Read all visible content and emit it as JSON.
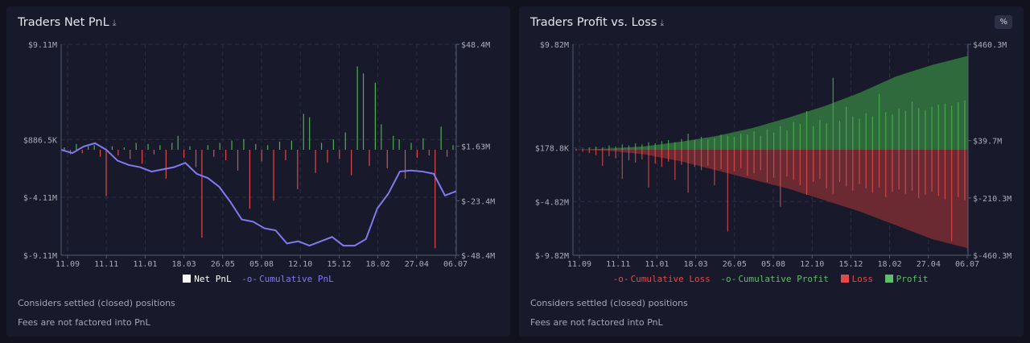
{
  "left_panel": {
    "title": "Traders Net PnL",
    "download_icon": "download-icon",
    "notes": [
      "Considers settled (closed) positions",
      "Fees are not factored into PnL"
    ]
  },
  "right_panel": {
    "title": "Traders Profit vs. Loss",
    "download_icon": "download-icon",
    "percent_button": "%",
    "notes": [
      "Considers settled (closed) positions",
      "Fees are not factored into PnL"
    ]
  },
  "colors": {
    "profit": "#4caf50",
    "loss": "#e04a4a",
    "cumulative_pnl": "#8179f0",
    "profit_area": "#2f6a3c",
    "loss_area": "#6b2a32",
    "background": "#181a2b"
  },
  "chart_data": [
    {
      "type": "bar+line",
      "x_tick_labels": [
        "11.09",
        "11.11",
        "11.01",
        "18.03",
        "26.05",
        "05.08",
        "12.10",
        "15.12",
        "18.02",
        "27.04",
        "06.07"
      ],
      "y_left_ticks": [
        "$9.11M",
        "$886.5K",
        "$-4.11M",
        "$-9.11M"
      ],
      "y_left_tick_values": [
        9.11,
        0.8865,
        -4.11,
        -9.11
      ],
      "y_left_range": [
        -9.11,
        9.11
      ],
      "y_right_ticks": [
        "$48.4M",
        "$1.63M",
        "$-23.4M",
        "$-48.4M"
      ],
      "y_right_tick_values": [
        48.4,
        1.63,
        -23.4,
        -48.4
      ],
      "y_right_range": [
        -48.4,
        48.4
      ],
      "grid": true,
      "legend_placement": "bottom",
      "legend": [
        "Net PnL",
        "Cumulative PnL"
      ],
      "series": [
        {
          "name": "Net PnL",
          "axis": "left",
          "unit": "M",
          "values": [
            0.2,
            -0.4,
            0.5,
            -0.3,
            0.3,
            0.4,
            -0.6,
            -4.0,
            0.3,
            -0.5,
            0.2,
            -0.8,
            0.6,
            -1.2,
            0.5,
            -0.4,
            0.4,
            -2.5,
            0.6,
            1.2,
            -0.7,
            0.3,
            -1.5,
            -7.6,
            0.4,
            -0.6,
            0.6,
            -0.9,
            0.8,
            -1.8,
            0.9,
            -5.1,
            0.5,
            -1.0,
            0.4,
            -4.4,
            0.7,
            -0.9,
            0.8,
            -3.4,
            3.1,
            2.8,
            -2.0,
            0.6,
            -1.1,
            0.9,
            -0.8,
            1.5,
            -2.2,
            7.2,
            6.6,
            -1.4,
            5.8,
            2.2,
            -1.6,
            1.2,
            0.9,
            -2.5,
            0.6,
            -0.7,
            1.0,
            -0.5,
            -8.5,
            2.0,
            -0.6,
            0.4
          ]
        },
        {
          "name": "Cumulative PnL",
          "axis": "right",
          "unit": "M",
          "values": [
            0,
            -1.5,
            1.5,
            3,
            0,
            -5,
            -7,
            -8,
            -10,
            -9,
            -8,
            -6,
            -11,
            -13,
            -17,
            -24,
            -32,
            -33,
            -36,
            -37,
            -43,
            -42,
            -44,
            -42,
            -40,
            -44,
            -44,
            -41,
            -27,
            -20,
            -10,
            -9.5,
            -10,
            -11,
            -21,
            -19
          ]
        }
      ]
    },
    {
      "type": "bar+area",
      "x_tick_labels": [
        "11.09",
        "11.11",
        "11.01",
        "18.03",
        "26.05",
        "05.08",
        "12.10",
        "15.12",
        "18.02",
        "27.04",
        "06.07"
      ],
      "y_left_ticks": [
        "$9.82M",
        "$178.8K",
        "$-4.82M",
        "$-9.82M"
      ],
      "y_left_tick_values": [
        9.82,
        0.1788,
        -4.82,
        -9.82
      ],
      "y_left_range": [
        -9.82,
        9.82
      ],
      "y_right_ticks": [
        "$460.3M",
        "$39.7M",
        "$-210.3M",
        "$-460.3M"
      ],
      "y_right_tick_values": [
        460.3,
        39.7,
        -210.3,
        -460.3
      ],
      "y_right_range": [
        -460.3,
        460.3
      ],
      "grid": true,
      "legend_placement": "bottom",
      "legend": [
        "Cumulative Loss",
        "Cumulative Profit",
        "Loss",
        "Profit"
      ],
      "series": [
        {
          "name": "Cumulative Loss",
          "axis": "right",
          "unit": "M",
          "values": [
            0,
            -5,
            -20,
            -50,
            -90,
            -130,
            -170,
            -220,
            -270,
            -330,
            -390,
            -430
          ]
        },
        {
          "name": "Cumulative Profit",
          "axis": "right",
          "unit": "M",
          "values": [
            0,
            5,
            15,
            35,
            60,
            95,
            140,
            190,
            250,
            320,
            370,
            410
          ]
        },
        {
          "name": "Loss",
          "axis": "left",
          "unit": "M",
          "values": [
            -0.1,
            -0.2,
            -0.3,
            -0.5,
            -1.5,
            -0.6,
            -0.8,
            -2.7,
            -1.0,
            -1.2,
            -0.9,
            -3.5,
            -1.3,
            -1.6,
            -1.1,
            -2.8,
            -1.4,
            -4.0,
            -1.6,
            -1.9,
            -1.5,
            -3.3,
            -1.8,
            -7.6,
            -2.0,
            -1.7,
            -2.4,
            -2.2,
            -1.9,
            -3.0,
            -2.6,
            -5.3,
            -2.5,
            -2.8,
            -3.3,
            -4.2,
            -3.0,
            -2.7,
            -3.6,
            -4.1,
            -3.0,
            -3.4,
            -3.8,
            -3.2,
            -3.6,
            -4.0,
            -3.5,
            -4.4,
            -3.9,
            -3.7,
            -4.1,
            -3.8,
            -4.5,
            -4.2,
            -3.9,
            -4.3,
            -4.6,
            -8.5,
            -4.4,
            -4.7
          ]
        },
        {
          "name": "Profit",
          "axis": "left",
          "unit": "M",
          "values": [
            0.1,
            0.1,
            0.2,
            0.3,
            0.2,
            0.4,
            0.3,
            0.5,
            0.4,
            0.6,
            0.5,
            0.7,
            0.6,
            0.8,
            0.9,
            0.7,
            1.0,
            1.5,
            0.9,
            1.2,
            1.0,
            1.1,
            1.4,
            1.3,
            1.2,
            1.5,
            1.4,
            1.7,
            1.3,
            1.9,
            1.6,
            2.2,
            1.8,
            2.6,
            2.4,
            3.6,
            2.2,
            2.8,
            2.5,
            6.7,
            2.7,
            4.0,
            3.1,
            2.9,
            3.4,
            3.1,
            5.2,
            3.5,
            3.3,
            3.8,
            3.6,
            4.5,
            3.9,
            3.7,
            4.0,
            4.2,
            4.3,
            4.1,
            4.4,
            4.6
          ]
        }
      ]
    }
  ]
}
